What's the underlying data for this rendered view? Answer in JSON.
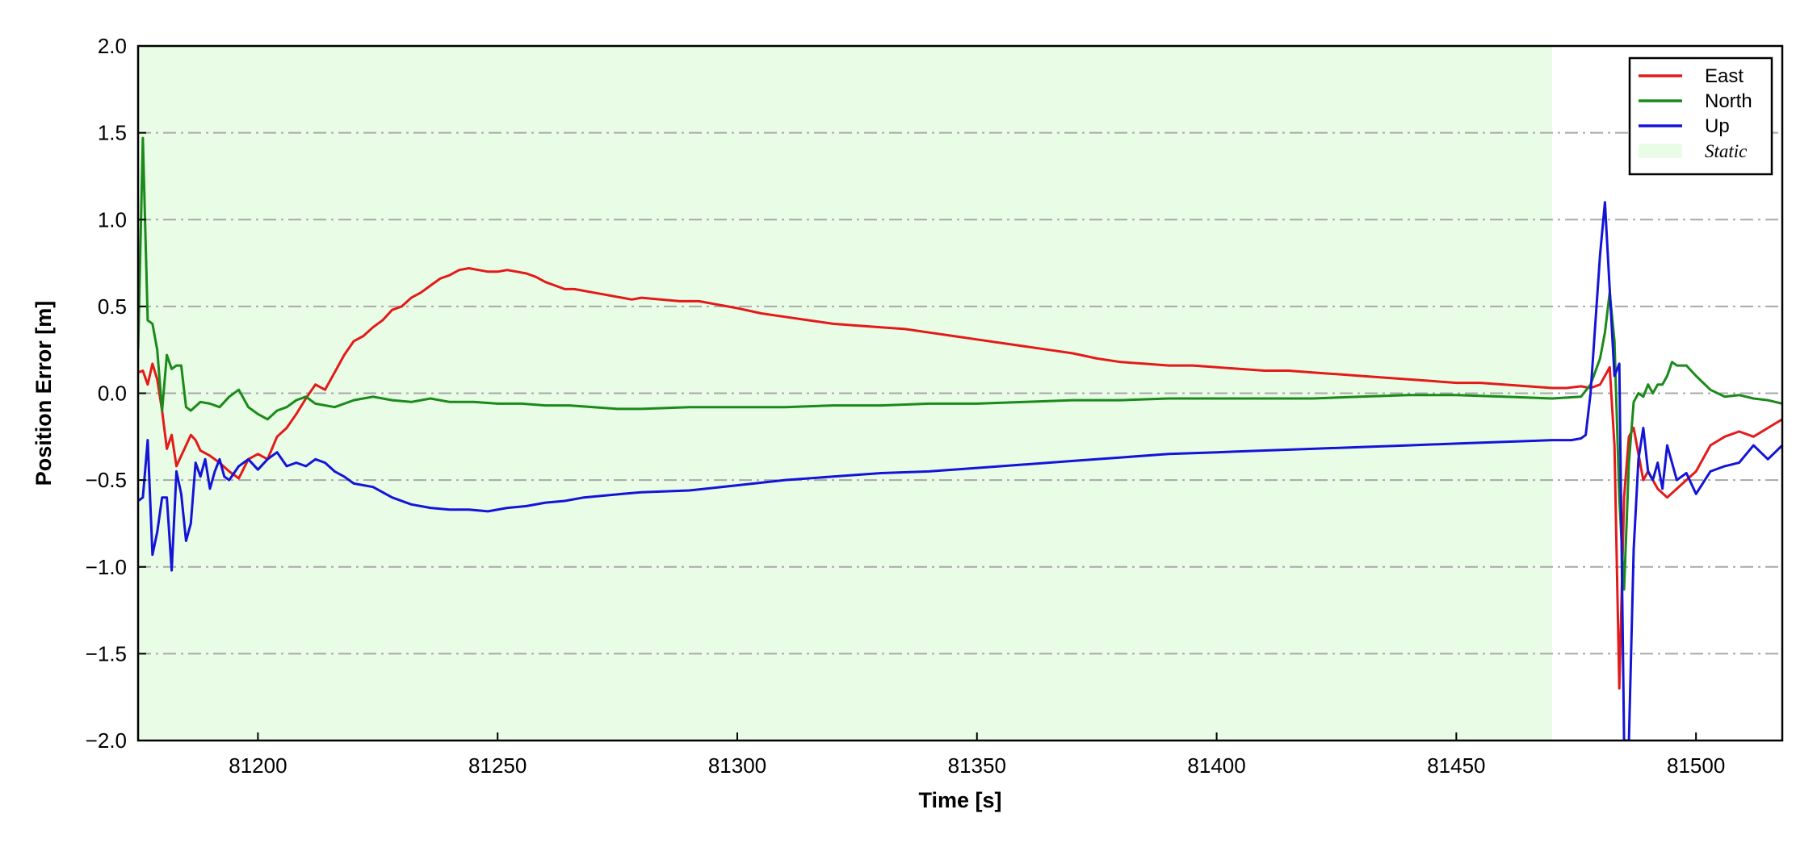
{
  "chart_data": {
    "type": "line",
    "xlabel": "Time [s]",
    "ylabel": "Position Error [m]",
    "xlim": [
      81175,
      81518
    ],
    "ylim": [
      -2.0,
      2.0
    ],
    "xticks": [
      81200,
      81250,
      81300,
      81350,
      81400,
      81450,
      81500
    ],
    "yticks": [
      -2.0,
      -1.5,
      -1.0,
      -0.5,
      0.0,
      0.5,
      1.0,
      1.5,
      2.0
    ],
    "ytick_labels": [
      "−2.0",
      "−1.5",
      "−1.0",
      "−0.5",
      "0.0",
      "0.5",
      "1.0",
      "1.5",
      "2.0"
    ],
    "grid": "horizontal dash-dot",
    "legend_position": "top-right",
    "static_span": {
      "label": "Static",
      "x0": 81175,
      "x1": 81470,
      "color": "#e8fce6"
    },
    "series": [
      {
        "name": "East",
        "color": "#e41a1a",
        "x": [
          81175,
          81176,
          81177,
          81178,
          81179,
          81180,
          81181,
          81182,
          81183,
          81184,
          81185,
          81186,
          81187,
          81188,
          81190,
          81192,
          81194,
          81196,
          81198,
          81200,
          81202,
          81204,
          81206,
          81208,
          81210,
          81212,
          81214,
          81216,
          81218,
          81220,
          81222,
          81224,
          81226,
          81228,
          81230,
          81232,
          81234,
          81236,
          81238,
          81240,
          81242,
          81244,
          81246,
          81248,
          81250,
          81252,
          81254,
          81256,
          81258,
          81260,
          81262,
          81264,
          81266,
          81268,
          81270,
          81272,
          81274,
          81276,
          81278,
          81280,
          81284,
          81288,
          81292,
          81296,
          81300,
          81305,
          81310,
          81315,
          81320,
          81325,
          81330,
          81335,
          81340,
          81345,
          81350,
          81355,
          81360,
          81365,
          81370,
          81375,
          81380,
          81385,
          81390,
          81395,
          81400,
          81405,
          81410,
          81415,
          81420,
          81425,
          81430,
          81435,
          81440,
          81445,
          81450,
          81455,
          81460,
          81465,
          81470,
          81473,
          81476,
          81478,
          81480,
          81481,
          81482,
          81483,
          81484,
          81485,
          81486,
          81487,
          81488,
          81489,
          81490,
          81492,
          81494,
          81496,
          81498,
          81500,
          81503,
          81506,
          81509,
          81512,
          81515,
          81518
        ],
        "y": [
          0.12,
          0.13,
          0.05,
          0.17,
          0.08,
          -0.1,
          -0.32,
          -0.24,
          -0.42,
          -0.36,
          -0.3,
          -0.24,
          -0.27,
          -0.33,
          -0.36,
          -0.4,
          -0.45,
          -0.49,
          -0.38,
          -0.35,
          -0.38,
          -0.25,
          -0.2,
          -0.12,
          -0.03,
          0.05,
          0.02,
          0.12,
          0.22,
          0.3,
          0.33,
          0.38,
          0.42,
          0.48,
          0.5,
          0.55,
          0.58,
          0.62,
          0.66,
          0.68,
          0.71,
          0.72,
          0.71,
          0.7,
          0.7,
          0.71,
          0.7,
          0.69,
          0.67,
          0.64,
          0.62,
          0.6,
          0.6,
          0.59,
          0.58,
          0.57,
          0.56,
          0.55,
          0.54,
          0.55,
          0.54,
          0.53,
          0.53,
          0.51,
          0.49,
          0.46,
          0.44,
          0.42,
          0.4,
          0.39,
          0.38,
          0.37,
          0.35,
          0.33,
          0.31,
          0.29,
          0.27,
          0.25,
          0.23,
          0.2,
          0.18,
          0.17,
          0.16,
          0.16,
          0.15,
          0.14,
          0.13,
          0.13,
          0.12,
          0.11,
          0.1,
          0.09,
          0.08,
          0.07,
          0.06,
          0.06,
          0.05,
          0.04,
          0.03,
          0.03,
          0.04,
          0.03,
          0.05,
          0.1,
          0.15,
          -0.3,
          -1.7,
          -0.6,
          -0.25,
          -0.2,
          -0.35,
          -0.5,
          -0.45,
          -0.55,
          -0.6,
          -0.55,
          -0.5,
          -0.45,
          -0.3,
          -0.25,
          -0.22,
          -0.25,
          -0.2,
          -0.15
        ]
      },
      {
        "name": "North",
        "color": "#1a8a1a",
        "x": [
          81175,
          81176,
          81177,
          81178,
          81179,
          81180,
          81181,
          81182,
          81183,
          81184,
          81185,
          81186,
          81188,
          81190,
          81192,
          81194,
          81196,
          81198,
          81200,
          81202,
          81204,
          81206,
          81208,
          81210,
          81212,
          81216,
          81220,
          81224,
          81228,
          81232,
          81236,
          81240,
          81245,
          81250,
          81255,
          81260,
          81265,
          81270,
          81275,
          81280,
          81290,
          81300,
          81310,
          81320,
          81330,
          81340,
          81350,
          81360,
          81370,
          81380,
          81390,
          81400,
          81410,
          81420,
          81430,
          81440,
          81450,
          81460,
          81470,
          81476,
          81478,
          81480,
          81481,
          81482,
          81483,
          81484,
          81485,
          81486,
          81487,
          81488,
          81489,
          81490,
          81491,
          81492,
          81493,
          81494,
          81495,
          81496,
          81498,
          81500,
          81503,
          81506,
          81509,
          81512,
          81515,
          81518
        ],
        "y": [
          0.25,
          1.47,
          0.42,
          0.4,
          0.25,
          -0.1,
          0.22,
          0.14,
          0.16,
          0.16,
          -0.08,
          -0.1,
          -0.05,
          -0.06,
          -0.08,
          -0.02,
          0.02,
          -0.08,
          -0.12,
          -0.15,
          -0.1,
          -0.08,
          -0.04,
          -0.02,
          -0.06,
          -0.08,
          -0.04,
          -0.02,
          -0.04,
          -0.05,
          -0.03,
          -0.05,
          -0.05,
          -0.06,
          -0.06,
          -0.07,
          -0.07,
          -0.08,
          -0.09,
          -0.09,
          -0.08,
          -0.08,
          -0.08,
          -0.07,
          -0.07,
          -0.06,
          -0.06,
          -0.05,
          -0.04,
          -0.04,
          -0.03,
          -0.03,
          -0.03,
          -0.03,
          -0.02,
          -0.01,
          -0.01,
          -0.02,
          -0.03,
          -0.02,
          0.05,
          0.2,
          0.35,
          0.58,
          0.3,
          -0.6,
          -1.13,
          -0.4,
          -0.05,
          0.0,
          -0.02,
          0.05,
          0.0,
          0.05,
          0.05,
          0.1,
          0.18,
          0.16,
          0.16,
          0.1,
          0.02,
          -0.02,
          -0.01,
          -0.03,
          -0.04,
          -0.06
        ]
      },
      {
        "name": "Up",
        "color": "#1414d8",
        "x": [
          81175,
          81176,
          81177,
          81178,
          81179,
          81180,
          81181,
          81182,
          81183,
          81184,
          81185,
          81186,
          81187,
          81188,
          81189,
          81190,
          81191,
          81192,
          81193,
          81194,
          81196,
          81198,
          81200,
          81202,
          81204,
          81206,
          81208,
          81210,
          81212,
          81214,
          81216,
          81218,
          81220,
          81224,
          81228,
          81232,
          81236,
          81240,
          81244,
          81248,
          81252,
          81256,
          81260,
          81264,
          81268,
          81272,
          81276,
          81280,
          81290,
          81300,
          81310,
          81320,
          81330,
          81340,
          81350,
          81360,
          81370,
          81380,
          81390,
          81400,
          81410,
          81420,
          81430,
          81440,
          81450,
          81460,
          81470,
          81474,
          81476,
          81477,
          81478,
          81479,
          81480,
          81481,
          81482,
          81483,
          81484,
          81485,
          81486,
          81487,
          81488,
          81489,
          81490,
          81491,
          81492,
          81493,
          81494,
          81496,
          81498,
          81500,
          81503,
          81506,
          81509,
          81512,
          81515,
          81518
        ],
        "y": [
          -0.62,
          -0.6,
          -0.27,
          -0.93,
          -0.8,
          -0.6,
          -0.6,
          -1.02,
          -0.45,
          -0.58,
          -0.85,
          -0.75,
          -0.4,
          -0.48,
          -0.38,
          -0.55,
          -0.45,
          -0.38,
          -0.48,
          -0.5,
          -0.42,
          -0.38,
          -0.44,
          -0.38,
          -0.34,
          -0.42,
          -0.4,
          -0.42,
          -0.38,
          -0.4,
          -0.45,
          -0.48,
          -0.52,
          -0.54,
          -0.6,
          -0.64,
          -0.66,
          -0.67,
          -0.67,
          -0.68,
          -0.66,
          -0.65,
          -0.63,
          -0.62,
          -0.6,
          -0.59,
          -0.58,
          -0.57,
          -0.56,
          -0.53,
          -0.5,
          -0.48,
          -0.46,
          -0.45,
          -0.43,
          -0.41,
          -0.39,
          -0.37,
          -0.35,
          -0.34,
          -0.33,
          -0.32,
          -0.31,
          -0.3,
          -0.29,
          -0.28,
          -0.27,
          -0.27,
          -0.26,
          -0.24,
          0.0,
          0.4,
          0.8,
          1.1,
          0.6,
          0.1,
          0.17,
          -2.0,
          -2.0,
          -0.9,
          -0.38,
          -0.2,
          -0.45,
          -0.5,
          -0.4,
          -0.55,
          -0.3,
          -0.5,
          -0.46,
          -0.58,
          -0.45,
          -0.42,
          -0.4,
          -0.3,
          -0.38,
          -0.3
        ]
      }
    ]
  }
}
